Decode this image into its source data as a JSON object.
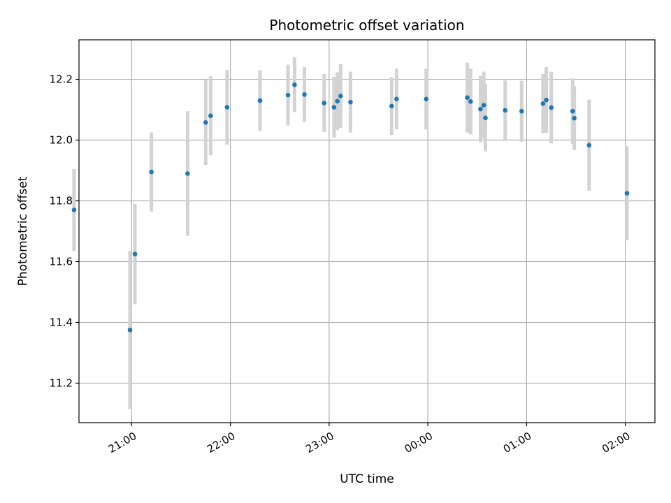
{
  "chart_data": {
    "type": "scatter",
    "title": "Photometric offset variation",
    "xlabel": "UTC time",
    "ylabel": "Photometric offset",
    "grid": true,
    "x_ticks": [
      "21:00",
      "22:00",
      "23:00",
      "00:00",
      "01:00",
      "02:00"
    ],
    "y_ticks": [
      "11.2",
      "11.4",
      "11.6",
      "11.8",
      "12.0",
      "12.2"
    ],
    "x_unit": "hours UTC (past midnight continues beyond 24:00)",
    "x_range": [
      "20:28",
      "02:18"
    ],
    "ylim": [
      11.07,
      12.33
    ],
    "colors": {
      "point": "#1f77b4",
      "errorbar": "#d3d3d3",
      "grid": "#b0b0b0"
    },
    "series": [
      {
        "points": [
          {
            "t": "20:25",
            "y": 11.77,
            "err": 0.135
          },
          {
            "t": "20:59",
            "y": 11.375,
            "err": 0.26
          },
          {
            "t": "21:02",
            "y": 11.625,
            "err": 0.165
          },
          {
            "t": "21:12",
            "y": 11.895,
            "err": 0.13
          },
          {
            "t": "21:34",
            "y": 11.89,
            "err": 0.205
          },
          {
            "t": "21:45",
            "y": 12.058,
            "err": 0.14
          },
          {
            "t": "21:48",
            "y": 12.08,
            "err": 0.13
          },
          {
            "t": "21:58",
            "y": 12.108,
            "err": 0.123
          },
          {
            "t": "22:18",
            "y": 12.13,
            "err": 0.1
          },
          {
            "t": "22:35",
            "y": 12.148,
            "err": 0.1
          },
          {
            "t": "22:39",
            "y": 12.182,
            "err": 0.09
          },
          {
            "t": "22:45",
            "y": 12.15,
            "err": 0.09
          },
          {
            "t": "22:57",
            "y": 12.122,
            "err": 0.095
          },
          {
            "t": "23:03",
            "y": 12.108,
            "err": 0.1
          },
          {
            "t": "23:05",
            "y": 12.128,
            "err": 0.095
          },
          {
            "t": "23:07",
            "y": 12.145,
            "err": 0.105
          },
          {
            "t": "23:13",
            "y": 12.125,
            "err": 0.1
          },
          {
            "t": "23:38",
            "y": 12.112,
            "err": 0.095
          },
          {
            "t": "23:41",
            "y": 12.135,
            "err": 0.1
          },
          {
            "t": "23:59",
            "y": 12.135,
            "err": 0.1
          },
          {
            "t": "00:24",
            "y": 12.14,
            "err": 0.115
          },
          {
            "t": "00:26",
            "y": 12.127,
            "err": 0.108
          },
          {
            "t": "00:32",
            "y": 12.102,
            "err": 0.11
          },
          {
            "t": "00:34",
            "y": 12.115,
            "err": 0.11
          },
          {
            "t": "00:35",
            "y": 12.073,
            "err": 0.11
          },
          {
            "t": "00:47",
            "y": 12.098,
            "err": 0.098
          },
          {
            "t": "00:57",
            "y": 12.095,
            "err": 0.1
          },
          {
            "t": "01:10",
            "y": 12.12,
            "err": 0.098
          },
          {
            "t": "01:12",
            "y": 12.132,
            "err": 0.108
          },
          {
            "t": "01:15",
            "y": 12.107,
            "err": 0.118
          },
          {
            "t": "01:28",
            "y": 12.095,
            "err": 0.108
          },
          {
            "t": "01:29",
            "y": 12.072,
            "err": 0.105
          },
          {
            "t": "01:38",
            "y": 11.983,
            "err": 0.15
          },
          {
            "t": "02:01",
            "y": 11.825,
            "err": 0.155
          }
        ]
      }
    ]
  }
}
